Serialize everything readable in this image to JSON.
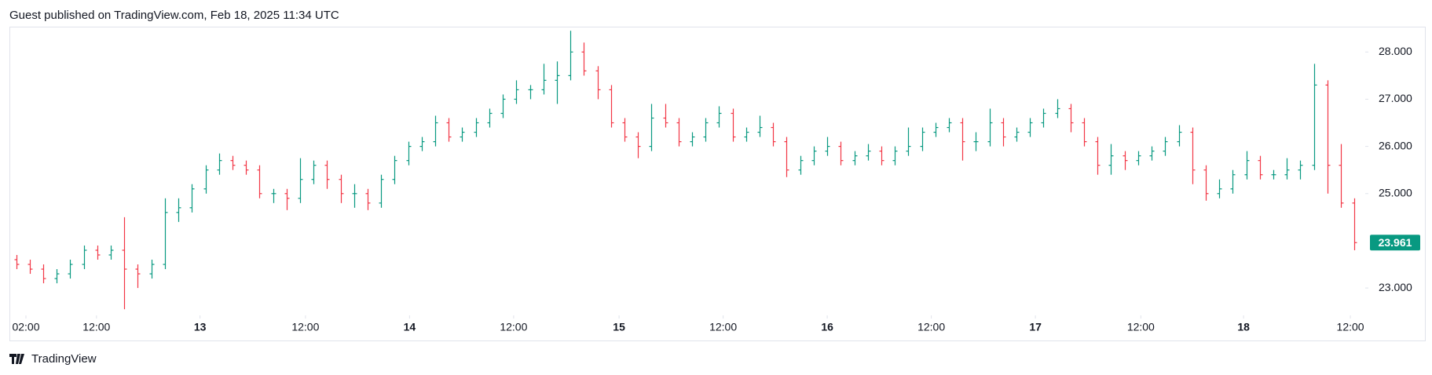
{
  "chart_data": {
    "type": "ohlc",
    "header": "Guest published on TradingView.com, Feb 18, 2025 11:34 UTC",
    "footer": "TradingView",
    "up_color": "#089981",
    "down_color": "#f23645",
    "last_price_color": "#089981",
    "open": [
      23.6,
      23.5,
      23.4,
      23.2,
      23.3,
      23.5,
      23.8,
      23.7,
      23.8,
      23.4,
      23.3,
      23.5,
      24.6,
      24.7,
      25.1,
      25.5,
      25.7,
      25.6,
      25.5,
      25.0,
      25.0,
      24.9,
      25.3,
      25.6,
      25.3,
      25.0,
      25.0,
      24.8,
      25.3,
      25.7,
      26.0,
      26.1,
      26.5,
      26.2,
      26.3,
      26.5,
      26.7,
      27.0,
      27.2,
      27.2,
      27.4,
      27.5,
      28.0,
      27.6,
      27.2,
      26.5,
      26.2,
      26.0,
      26.6,
      26.5,
      26.1,
      26.2,
      26.5,
      26.7,
      26.2,
      26.3,
      26.4,
      26.1,
      25.5,
      25.7,
      25.9,
      26.0,
      25.7,
      25.8,
      25.9,
      25.7,
      25.9,
      26.0,
      26.3,
      26.4,
      26.5,
      26.1,
      26.1,
      26.5,
      26.2,
      26.3,
      26.5,
      26.7,
      26.8,
      26.5,
      26.1,
      25.6,
      25.8,
      25.7,
      25.8,
      25.9,
      26.1,
      26.3,
      25.5,
      25.0,
      25.1,
      25.4,
      25.7,
      25.4,
      25.4,
      25.5,
      25.6,
      27.3,
      25.6,
      24.8
    ],
    "high": [
      23.7,
      23.6,
      23.5,
      23.4,
      23.6,
      23.9,
      23.9,
      23.9,
      24.5,
      23.5,
      23.6,
      24.9,
      24.9,
      25.2,
      25.6,
      25.85,
      25.8,
      25.7,
      25.6,
      25.1,
      25.1,
      25.75,
      25.7,
      25.7,
      25.4,
      25.2,
      25.1,
      25.4,
      25.8,
      26.1,
      26.2,
      26.65,
      26.6,
      26.4,
      26.6,
      26.8,
      27.1,
      27.4,
      27.3,
      27.75,
      27.8,
      28.45,
      28.2,
      27.7,
      27.3,
      26.6,
      26.3,
      26.9,
      26.9,
      26.6,
      26.3,
      26.6,
      26.85,
      26.8,
      26.4,
      26.65,
      26.5,
      26.2,
      25.8,
      26.0,
      26.2,
      26.1,
      25.9,
      26.05,
      26.0,
      26.0,
      26.4,
      26.4,
      26.5,
      26.6,
      26.6,
      26.3,
      26.8,
      26.6,
      26.4,
      26.6,
      26.8,
      27.0,
      26.9,
      26.6,
      26.2,
      26.05,
      25.9,
      25.9,
      26.0,
      26.2,
      26.45,
      26.4,
      25.6,
      25.3,
      25.5,
      25.9,
      25.8,
      25.5,
      25.75,
      25.7,
      27.75,
      27.4,
      26.05,
      24.9
    ],
    "low": [
      23.4,
      23.3,
      23.1,
      23.1,
      23.2,
      23.4,
      23.6,
      23.6,
      22.55,
      23.0,
      23.2,
      23.4,
      24.4,
      24.6,
      25.0,
      25.4,
      25.5,
      25.4,
      24.9,
      24.8,
      24.65,
      24.8,
      25.2,
      25.1,
      24.8,
      24.7,
      24.65,
      24.7,
      25.2,
      25.6,
      25.9,
      26.0,
      26.1,
      26.1,
      26.2,
      26.4,
      26.6,
      26.9,
      27.0,
      27.1,
      26.9,
      27.4,
      27.5,
      27.0,
      26.4,
      26.1,
      25.75,
      25.9,
      26.4,
      26.0,
      26.0,
      26.1,
      26.4,
      26.1,
      26.1,
      26.2,
      26.0,
      25.35,
      25.4,
      25.6,
      25.8,
      25.6,
      25.6,
      25.7,
      25.6,
      25.6,
      25.8,
      25.9,
      26.2,
      26.3,
      25.7,
      25.9,
      26.0,
      26.0,
      26.1,
      26.2,
      26.4,
      26.6,
      26.3,
      26.0,
      25.4,
      25.4,
      25.5,
      25.6,
      25.7,
      25.8,
      26.0,
      25.2,
      24.85,
      24.9,
      25.0,
      25.3,
      25.3,
      25.3,
      25.3,
      25.3,
      25.5,
      25.0,
      24.7,
      23.8
    ],
    "close": [
      23.5,
      23.4,
      23.2,
      23.3,
      23.5,
      23.8,
      23.7,
      23.8,
      23.4,
      23.3,
      23.5,
      24.6,
      24.7,
      25.1,
      25.5,
      25.7,
      25.6,
      25.5,
      25.0,
      25.0,
      24.9,
      25.3,
      25.6,
      25.3,
      25.0,
      25.0,
      24.8,
      25.3,
      25.7,
      26.0,
      26.1,
      26.5,
      26.2,
      26.3,
      26.5,
      26.7,
      27.0,
      27.2,
      27.2,
      27.4,
      27.5,
      28.0,
      27.6,
      27.2,
      26.5,
      26.2,
      26.0,
      26.6,
      26.5,
      26.1,
      26.2,
      26.5,
      26.7,
      26.2,
      26.3,
      26.4,
      26.1,
      25.5,
      25.7,
      25.9,
      26.0,
      25.7,
      25.8,
      25.9,
      25.7,
      25.9,
      26.0,
      26.3,
      26.4,
      26.5,
      26.1,
      26.1,
      26.5,
      26.2,
      26.3,
      26.5,
      26.7,
      26.8,
      26.5,
      26.1,
      25.6,
      25.8,
      25.7,
      25.8,
      25.9,
      26.1,
      26.3,
      25.5,
      25.0,
      25.1,
      25.4,
      25.7,
      25.4,
      25.4,
      25.5,
      25.6,
      27.3,
      25.6,
      24.8,
      23.961
    ],
    "xlim": [
      -0.5,
      99.8
    ],
    "xticks": [
      {
        "value": 0.72,
        "label": "02:00"
      },
      {
        "value": 5.94,
        "label": "12:00"
      },
      {
        "value": 13.6,
        "label": "13"
      },
      {
        "value": 21.4,
        "label": "12:00"
      },
      {
        "value": 29.1,
        "label": "14"
      },
      {
        "value": 36.8,
        "label": "12:00"
      },
      {
        "value": 44.6,
        "label": "15"
      },
      {
        "value": 52.3,
        "label": "12:00"
      },
      {
        "value": 60.0,
        "label": "16"
      },
      {
        "value": 67.7,
        "label": "12:00"
      },
      {
        "value": 75.4,
        "label": "17"
      },
      {
        "value": 83.2,
        "label": "12:00"
      },
      {
        "value": 90.8,
        "label": "18"
      },
      {
        "value": 98.7,
        "label": "12:00"
      }
    ],
    "ylim": [
      22.42,
      28.52
    ],
    "yticks": [
      {
        "value": 23,
        "label": "23.000"
      },
      {
        "value": 25,
        "label": "25.000"
      },
      {
        "value": 26,
        "label": "26.000"
      },
      {
        "value": 27,
        "label": "27.000"
      },
      {
        "value": 28,
        "label": "28.000"
      }
    ]
  }
}
